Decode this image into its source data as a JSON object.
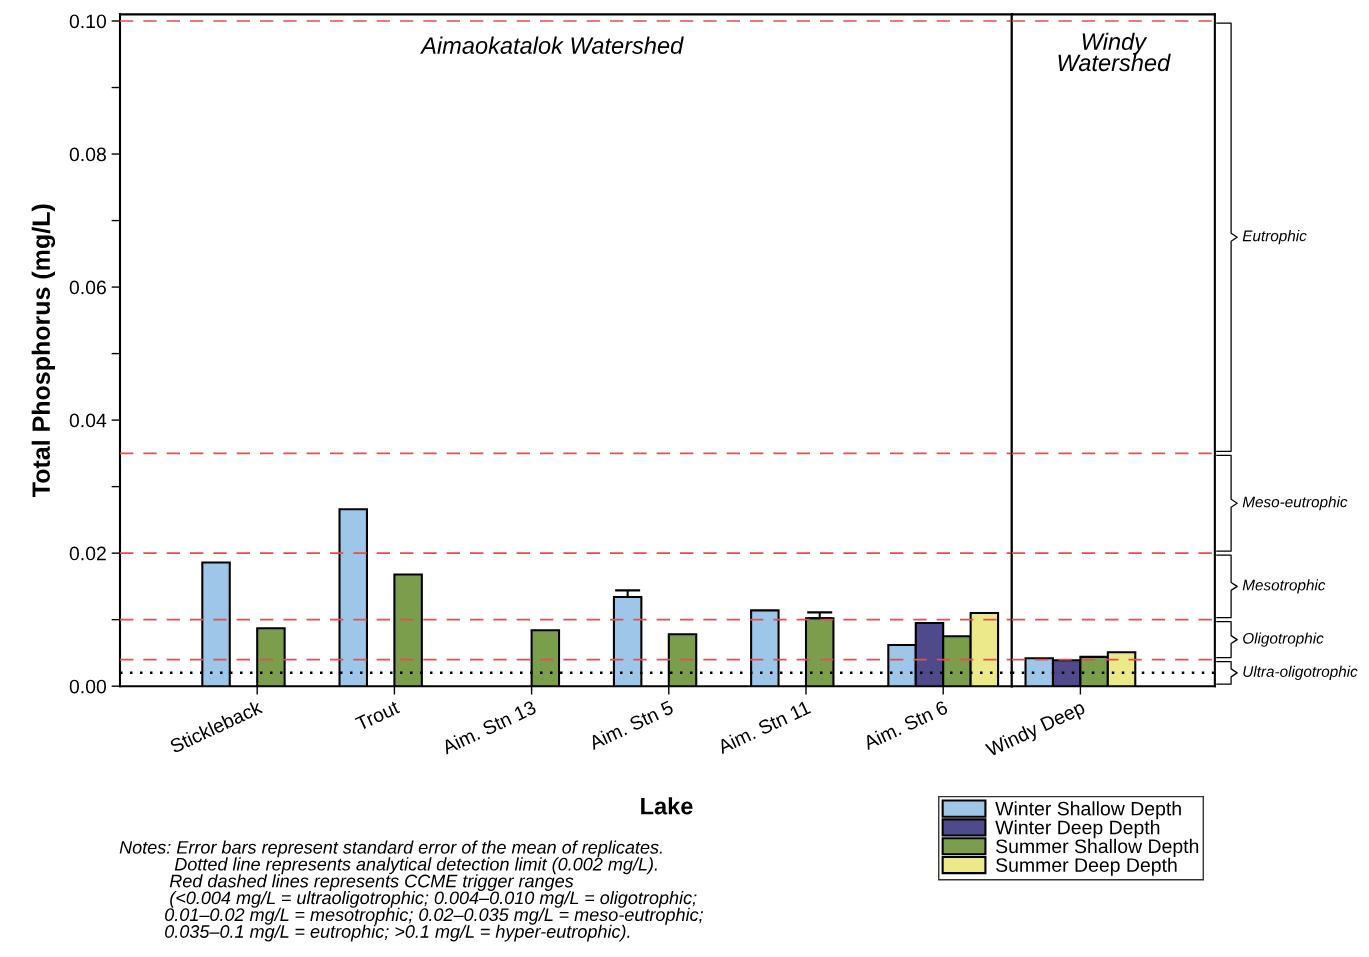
{
  "chart_data": [
    {
      "type": "bar",
      "xlabel": "Lake",
      "ylabel": "Total Phosphorus (mg/L)",
      "categories": [
        "Stickleback",
        "Trout",
        "Aim. Stn 13",
        "Aim. Stn 5",
        "Aim. Stn 11",
        "Aim. Stn 6"
      ],
      "series": [
        {
          "name": "Winter Shallow Depth",
          "color": "#9dc6e8",
          "values": [
            0.0186,
            0.0266,
            null,
            0.0134,
            0.0114,
            0.0062
          ],
          "errors": [
            null,
            null,
            null,
            0.001,
            null,
            null
          ]
        },
        {
          "name": "Winter Deep Depth",
          "color": "#4e4a8c",
          "values": [
            null,
            null,
            null,
            null,
            null,
            0.0095
          ]
        },
        {
          "name": "Summer Shallow Depth",
          "color": "#7a9e4c",
          "values": [
            0.0087,
            0.0168,
            0.0084,
            0.0078,
            0.0102,
            0.0075
          ],
          "errors": [
            null,
            null,
            null,
            null,
            0.0009,
            null
          ]
        },
        {
          "name": "Summer Deep Depth",
          "color": "#ece98a",
          "values": [
            null,
            null,
            null,
            null,
            null,
            0.011
          ]
        }
      ],
      "ylim": [
        0,
        0.101
      ],
      "yticks": [
        {
          "value": 0,
          "label": "0.00"
        },
        {
          "value": 0.01,
          "label": null
        },
        {
          "value": 0.02,
          "label": "0.02"
        },
        {
          "value": 0.03,
          "label": null
        },
        {
          "value": 0.04,
          "label": "0.04"
        },
        {
          "value": 0.05,
          "label": null
        },
        {
          "value": 0.06,
          "label": "0.06"
        },
        {
          "value": 0.07,
          "label": null
        },
        {
          "value": 0.08,
          "label": "0.08"
        },
        {
          "value": 0.09,
          "label": null
        },
        {
          "value": 0.1,
          "label": "0.10"
        }
      ],
      "ref_lines": [
        {
          "axis": "y",
          "value": 0.004,
          "color": "#e05050",
          "line_style": "dashed"
        },
        {
          "axis": "y",
          "value": 0.01,
          "color": "#e05050",
          "line_style": "dashed"
        },
        {
          "axis": "y",
          "value": 0.02,
          "color": "#e05050",
          "line_style": "dashed"
        },
        {
          "axis": "y",
          "value": 0.035,
          "color": "#e05050",
          "line_style": "dashed"
        },
        {
          "axis": "y",
          "value": 0.1,
          "color": "#e05050",
          "line_style": "dashed"
        },
        {
          "axis": "y",
          "value": 0.002,
          "color": "#000000",
          "line_style": "dotted"
        }
      ],
      "annotations": [
        "Aimaokatalok Watershed",
        "Notes: Error bars represent standard error of the mean of replicates.\n           Dotted line represents analytical detection limit (0.002 mg/L).\n          Red dashed lines represents CCME trigger ranges\n          (<0.004 mg/L = ultraoligotrophic; 0.004–0.010 mg/L = oligotrophic;\n         0.01–0.02 mg/L = mesotrophic; 0.02–0.035 mg/L = meso-eutrophic;\n         0.035–0.1 mg/L = eutrophic; >0.1 mg/L = hyper-eutrophic)."
      ],
      "legend": "bottom right",
      "grid": false
    },
    {
      "type": "bar",
      "categories": [
        "Windy Deep"
      ],
      "series": [
        {
          "color": "#9dc6e8",
          "values": [
            0.0042
          ]
        },
        {
          "color": "#4e4a8c",
          "values": [
            0.0039
          ]
        },
        {
          "color": "#7a9e4c",
          "values": [
            0.0044
          ]
        },
        {
          "color": "#ece98a",
          "values": [
            0.0051
          ]
        }
      ],
      "ylim": [
        0,
        0.101
      ],
      "tick_labels": "x",
      "ref_lines": [
        {
          "axis": "y",
          "value": 0.004,
          "color": "#e05050",
          "line_style": "dashed"
        },
        {
          "axis": "y",
          "value": 0.01,
          "color": "#e05050",
          "line_style": "dashed"
        },
        {
          "axis": "y",
          "value": 0.02,
          "color": "#e05050",
          "line_style": "dashed"
        },
        {
          "axis": "y",
          "value": 0.035,
          "color": "#e05050",
          "line_style": "dashed"
        },
        {
          "axis": "y",
          "value": 0.1,
          "color": "#e05050",
          "line_style": "dashed"
        },
        {
          "axis": "y",
          "value": 0.002,
          "color": "#000000",
          "line_style": "dotted"
        }
      ],
      "annotations": [
        "Windy\nWatershed",
        "Eutrophic",
        "Meso-eutrophic",
        "Mesotrophic",
        "Oligotrophic",
        "Ultra-oligotrophic"
      ],
      "grid": false
    }
  ]
}
